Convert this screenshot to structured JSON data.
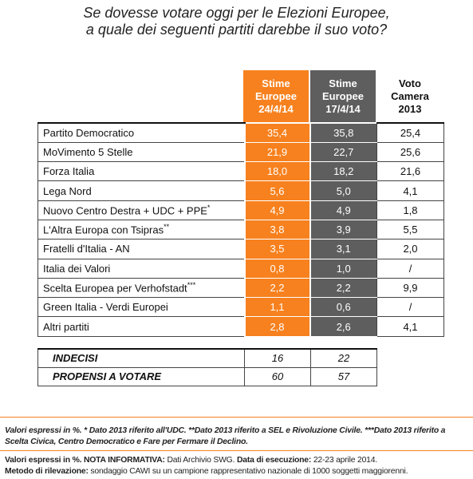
{
  "title_line1": "Se dovesse votare oggi per le Elezioni Europee,",
  "title_line2": "a quale dei seguenti partiti darebbe il suo voto?",
  "columns": [
    {
      "l1": "Stime",
      "l2": "Europee",
      "l3": "24/4/14"
    },
    {
      "l1": "Stime",
      "l2": "Europee",
      "l3": "17/4/14"
    },
    {
      "l1": "Voto",
      "l2": "Camera",
      "l3": "2013"
    }
  ],
  "colors": {
    "orange": "#f7811e",
    "gray": "#5e5e5e"
  },
  "chart_data": {
    "type": "table",
    "title": "Se dovesse votare oggi per le Elezioni Europee, a quale dei seguenti partiti darebbe il suo voto?",
    "columns": [
      "Stime Europee 24/4/14",
      "Stime Europee 17/4/14",
      "Voto Camera 2013"
    ],
    "rows": [
      {
        "party": "Partito Democratico",
        "sup": "",
        "v1": "35,4",
        "v2": "35,8",
        "v3": "25,4"
      },
      {
        "party": "MoVimento 5 Stelle",
        "sup": "",
        "v1": "21,9",
        "v2": "22,7",
        "v3": "25,6"
      },
      {
        "party": "Forza Italia",
        "sup": "",
        "v1": "18,0",
        "v2": "18,2",
        "v3": "21,6"
      },
      {
        "party": "Lega Nord",
        "sup": "",
        "v1": "5,6",
        "v2": "5,0",
        "v3": "4,1"
      },
      {
        "party": "Nuovo Centro Destra + UDC + PPE",
        "sup": "*",
        "v1": "4,9",
        "v2": "4,9",
        "v3": "1,8"
      },
      {
        "party": "L'Altra Europa con Tsipras",
        "sup": "**",
        "v1": "3,8",
        "v2": "3,9",
        "v3": "5,5"
      },
      {
        "party": "Fratelli d'Italia - AN",
        "sup": "",
        "v1": "3,5",
        "v2": "3,1",
        "v3": "2,0"
      },
      {
        "party": "Italia dei Valori",
        "sup": "",
        "v1": "0,8",
        "v2": "1,0",
        "v3": "/"
      },
      {
        "party": "Scelta Europea per Verhofstadt",
        "sup": "***",
        "v1": "2,2",
        "v2": "2,2",
        "v3": "9,9"
      },
      {
        "party": "Green Italia - Verdi Europei",
        "sup": "",
        "v1": "1,1",
        "v2": "0,6",
        "v3": "/"
      },
      {
        "party": "Altri partiti",
        "sup": "",
        "v1": "2,8",
        "v2": "2,6",
        "v3": "4,1"
      }
    ],
    "summary": [
      {
        "label": "INDECISI",
        "v1": "16",
        "v2": "22"
      },
      {
        "label": "PROPENSI A VOTARE",
        "v1": "60",
        "v2": "57"
      }
    ]
  },
  "note_line1": "Valori espressi in %. * Dato 2013 riferito all'UDC. **Dato 2013 riferito a SEL e Rivoluzione Civile. ***Dato 2013 riferito a",
  "note_line2": "Scelta Civica, Centro Democratico e Fare per Fermare il Declino.",
  "info": {
    "a_label": "Valori espressi in %. NOTA INFORMATIVA:",
    "a_text": " Dati Archivio SWG. ",
    "b_label": "Data di esecuzione:",
    "b_text": " 22-23 aprile 2014.",
    "c_label": "Metodo di rilevazione:",
    "c_text": " sondaggio CAWI su un campione rappresentativo nazionale di 1000 soggetti maggiorenni."
  }
}
